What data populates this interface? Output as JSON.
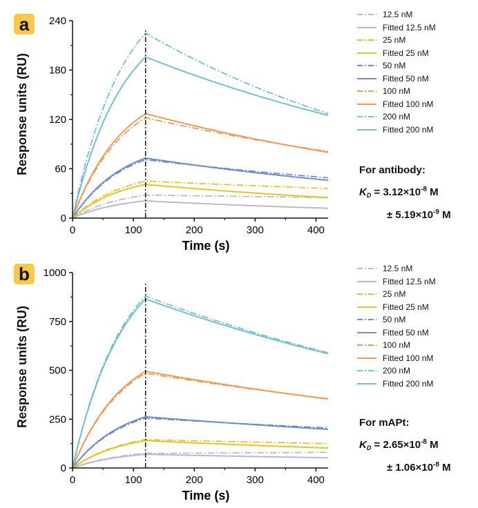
{
  "colors": {
    "12.5": "#b9b6d6",
    "25": "#e5c328",
    "50": "#6f8cc6",
    "100": "#ec9c5a",
    "200": "#74bfcd",
    "badge": "#f6c94a"
  },
  "panels": [
    {
      "badge": "a",
      "ylabel": "Response units (RU)",
      "kd": {
        "title": "For antibody:",
        "symbol": "K",
        "subscript": "D",
        "value": " = 3.12×10",
        "value_exp": "-8",
        "value_unit": " M",
        "error_prefix": "± 5.19×10",
        "error_exp": "-9",
        "error_unit": " M"
      },
      "legend": [
        {
          "label": "12.5 nM",
          "style": "dashdot",
          "color": "#b9b6d6"
        },
        {
          "label": "Fitted 12.5 nM",
          "style": "solid",
          "color": "#b9b6d6"
        },
        {
          "label": "25 nM",
          "style": "dashdot",
          "color": "#e5c328"
        },
        {
          "label": "Fitted 25 nM",
          "style": "solid",
          "color": "#e5c328"
        },
        {
          "label": "50 nM",
          "style": "dashdot",
          "color": "#6f8cc6"
        },
        {
          "label": "Fitted 50 nM",
          "style": "solid",
          "color": "#6f8cc6"
        },
        {
          "label": "100 nM",
          "style": "dashdot",
          "color": "#ec9c5a"
        },
        {
          "label": "Fitted 100 nM",
          "style": "solid",
          "color": "#ec9c5a"
        },
        {
          "label": "200 nM",
          "style": "dashdot",
          "color": "#74bfcd"
        },
        {
          "label": "Fitted 200 nM",
          "style": "solid",
          "color": "#74bfcd"
        }
      ]
    },
    {
      "badge": "b",
      "ylabel": "Response units (RU)",
      "kd": {
        "title": "For mAPt:",
        "symbol": "K",
        "subscript": "D",
        "value": " = 2.65×10",
        "value_exp": "-8",
        "value_unit": " M",
        "error_prefix": "± 1.06×10",
        "error_exp": "-8",
        "error_unit": " M"
      },
      "legend": [
        {
          "label": "12.5 nM",
          "style": "dashdot",
          "color": "#b9b6d6"
        },
        {
          "label": "Fitted 12.5 nM",
          "style": "solid",
          "color": "#b9b6d6"
        },
        {
          "label": "25 nM",
          "style": "dashdot",
          "color": "#e5c328"
        },
        {
          "label": "Fitted 25 nM",
          "style": "solid",
          "color": "#e5c328"
        },
        {
          "label": "50 nM",
          "style": "dashdot",
          "color": "#6f8cc6"
        },
        {
          "label": "Fitted 50 nM",
          "style": "solid",
          "color": "#6f8cc6"
        },
        {
          "label": "100 nM",
          "style": "dashdot",
          "color": "#ec9c5a"
        },
        {
          "label": "Fitted 100 nM",
          "style": "solid",
          "color": "#ec9c5a"
        },
        {
          "label": "200 nM",
          "style": "dashdot",
          "color": "#74bfcd"
        },
        {
          "label": "Fitted 200 nM",
          "style": "solid",
          "color": "#74bfcd"
        }
      ]
    }
  ],
  "chart_data": [
    {
      "type": "line",
      "panel": "a",
      "title": "",
      "xlabel": "Time (s)",
      "ylabel": "Response units (RU)",
      "xlim": [
        0,
        420
      ],
      "ylim": [
        0,
        240
      ],
      "xticks": [
        0,
        100,
        200,
        300,
        400
      ],
      "yticks": [
        0,
        60,
        120,
        180,
        240
      ],
      "injection_end": 120,
      "series": [
        {
          "name": "12.5 nM",
          "conc": "12.5",
          "style": "dashdot",
          "color": "#b9b6d6",
          "assoc_max": 28,
          "dissoc_end": 25
        },
        {
          "name": "Fitted 12.5 nM",
          "conc": "12.5",
          "style": "solid",
          "color": "#b9b6d6",
          "assoc_max": 21,
          "dissoc_end": 12
        },
        {
          "name": "25 nM",
          "conc": "25",
          "style": "dashdot",
          "color": "#e5c328",
          "assoc_max": 45,
          "dissoc_end": 36
        },
        {
          "name": "Fitted 25 nM",
          "conc": "25",
          "style": "solid",
          "color": "#e5c328",
          "assoc_max": 41,
          "dissoc_end": 25
        },
        {
          "name": "50 nM",
          "conc": "50",
          "style": "dashdot",
          "color": "#6f8cc6",
          "assoc_max": 71,
          "dissoc_end": 49
        },
        {
          "name": "Fitted 50 nM",
          "conc": "50",
          "style": "solid",
          "color": "#6f8cc6",
          "assoc_max": 73,
          "dissoc_end": 46
        },
        {
          "name": "100 nM",
          "conc": "100",
          "style": "dashdot",
          "color": "#ec9c5a",
          "assoc_max": 122,
          "dissoc_end": 81
        },
        {
          "name": "Fitted 100 nM",
          "conc": "100",
          "style": "solid",
          "color": "#ec9c5a",
          "assoc_max": 127,
          "dissoc_end": 80
        },
        {
          "name": "200 nM",
          "conc": "200",
          "style": "dashdot",
          "color": "#74bfcd",
          "assoc_max": 225,
          "dissoc_end": 127
        },
        {
          "name": "Fitted 200 nM",
          "conc": "200",
          "style": "solid",
          "color": "#74bfcd",
          "assoc_max": 196,
          "dissoc_end": 125
        }
      ]
    },
    {
      "type": "line",
      "panel": "b",
      "title": "",
      "xlabel": "Time (s)",
      "ylabel": "Response units (RU)",
      "xlim": [
        0,
        420
      ],
      "ylim": [
        0,
        1000
      ],
      "xticks": [
        0,
        100,
        200,
        300,
        400
      ],
      "yticks": [
        0,
        250,
        500,
        750,
        1000
      ],
      "injection_end": 120,
      "series": [
        {
          "name": "12.5 nM",
          "conc": "12.5",
          "style": "dashdot",
          "color": "#b9b6d6",
          "assoc_max": 75,
          "dissoc_end": 80
        },
        {
          "name": "Fitted 12.5 nM",
          "conc": "12.5",
          "style": "solid",
          "color": "#b9b6d6",
          "assoc_max": 70,
          "dissoc_end": 52
        },
        {
          "name": "25 nM",
          "conc": "25",
          "style": "dashdot",
          "color": "#e5c328",
          "assoc_max": 145,
          "dissoc_end": 125
        },
        {
          "name": "Fitted 25 nM",
          "conc": "25",
          "style": "solid",
          "color": "#e5c328",
          "assoc_max": 140,
          "dissoc_end": 102
        },
        {
          "name": "50 nM",
          "conc": "50",
          "style": "dashdot",
          "color": "#6f8cc6",
          "assoc_max": 255,
          "dissoc_end": 205
        },
        {
          "name": "Fitted 50 nM",
          "conc": "50",
          "style": "solid",
          "color": "#6f8cc6",
          "assoc_max": 262,
          "dissoc_end": 198
        },
        {
          "name": "100 nM",
          "conc": "100",
          "style": "dashdot",
          "color": "#ec9c5a",
          "assoc_max": 485,
          "dissoc_end": 355
        },
        {
          "name": "Fitted 100 nM",
          "conc": "100",
          "style": "solid",
          "color": "#ec9c5a",
          "assoc_max": 495,
          "dissoc_end": 353
        },
        {
          "name": "200 nM",
          "conc": "200",
          "style": "dashdot",
          "color": "#74bfcd",
          "assoc_max": 880,
          "dissoc_end": 590
        },
        {
          "name": "Fitted 200 nM",
          "conc": "200",
          "style": "solid",
          "color": "#74bfcd",
          "assoc_max": 865,
          "dissoc_end": 585
        }
      ]
    }
  ]
}
